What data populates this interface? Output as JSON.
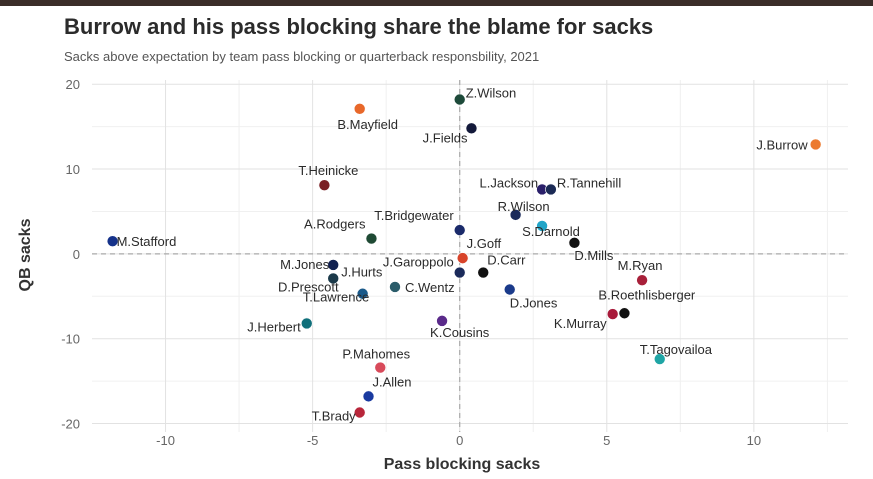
{
  "title": "Burrow and his pass blocking share the blame for sacks",
  "subtitle": "Sacks above expectation by team pass blocking or quarterback responsbility, 2021",
  "chart_data": {
    "type": "scatter",
    "xlabel": "Pass blocking sacks",
    "ylabel": "QB sacks",
    "xlim": [
      -12.5,
      13.2
    ],
    "ylim": [
      -21,
      20.5
    ],
    "xticks": [
      -10,
      -5,
      0,
      5,
      10
    ],
    "yticks": [
      20,
      10,
      0,
      -10,
      -20
    ],
    "grid": true,
    "reference_lines": {
      "x": 0,
      "y": 0,
      "style": "dashed"
    },
    "points": [
      {
        "label": "Z.Wilson",
        "x": 0.0,
        "y": 18.2,
        "color": "#1d4a3a"
      },
      {
        "label": "B.Mayfield",
        "x": -3.4,
        "y": 17.1,
        "color": "#e8682a"
      },
      {
        "label": "J.Fields",
        "x": 0.4,
        "y": 14.8,
        "color": "#13193a"
      },
      {
        "label": "J.Burrow",
        "x": 12.1,
        "y": 12.9,
        "color": "#ec7a2f"
      },
      {
        "label": "T.Heinicke",
        "x": -4.6,
        "y": 8.1,
        "color": "#7a1f24"
      },
      {
        "label": "L.Jackson",
        "x": 2.8,
        "y": 7.6,
        "color": "#2a1f6a"
      },
      {
        "label": "R.Tannehill",
        "x": 3.1,
        "y": 7.6,
        "color": "#1b2a55"
      },
      {
        "label": "R.Wilson",
        "x": 1.9,
        "y": 4.6,
        "color": "#1a2a5a"
      },
      {
        "label": "S.Darnold",
        "x": 2.8,
        "y": 3.3,
        "color": "#22a5c8"
      },
      {
        "label": "M.Stafford",
        "x": -11.8,
        "y": 1.5,
        "color": "#15328a"
      },
      {
        "label": "A.Rodgers",
        "x": -3.0,
        "y": 1.8,
        "color": "#1f4a34"
      },
      {
        "label": "T.Bridgewater",
        "x": 0.0,
        "y": 2.8,
        "color": "#1a2a6a"
      },
      {
        "label": "D.Mills",
        "x": 3.9,
        "y": 1.3,
        "color": "#111111"
      },
      {
        "label": "J.Goff",
        "x": 0.1,
        "y": -0.5,
        "color": "#d8442a"
      },
      {
        "label": "M.Jones",
        "x": -4.3,
        "y": -1.3,
        "color": "#102050"
      },
      {
        "label": "J.Garoppolo",
        "x": 0.0,
        "y": -2.2,
        "color": "#1a2a5a"
      },
      {
        "label": "D.Carr",
        "x": 0.8,
        "y": -2.2,
        "color": "#111111"
      },
      {
        "label": "J.Hurts",
        "x": -4.3,
        "y": -2.9,
        "color": "#1b3a4a"
      },
      {
        "label": "M.Ryan",
        "x": 6.2,
        "y": -3.1,
        "color": "#a8203a"
      },
      {
        "label": "C.Wentz",
        "x": -2.2,
        "y": -3.9,
        "color": "#2b5c6a"
      },
      {
        "label": "D.Jones",
        "x": 1.7,
        "y": -4.2,
        "color": "#1a3a8a"
      },
      {
        "label": "D.Prescott",
        "x": -3.3,
        "y": -4.7,
        "color": "#1a5a8a"
      },
      {
        "label": "B.Roethlisberger",
        "x": 5.6,
        "y": -7.0,
        "color": "#111111"
      },
      {
        "label": "K.Murray",
        "x": 5.2,
        "y": -7.1,
        "color": "#a81a3a"
      },
      {
        "label": "K.Cousins",
        "x": -0.6,
        "y": -7.9,
        "color": "#5a2a8a"
      },
      {
        "label": "J.Herbert",
        "x": -5.2,
        "y": -8.2,
        "color": "#2a8ad8"
      },
      {
        "label": "T.Lawrence",
        "x": -5.2,
        "y": -8.2,
        "color": "#0f6f7a"
      },
      {
        "label": "T.Tagovailoa",
        "x": 6.8,
        "y": -12.4,
        "color": "#1fa5a5"
      },
      {
        "label": "P.Mahomes",
        "x": -2.7,
        "y": -13.4,
        "color": "#d84a5a"
      },
      {
        "label": "J.Allen",
        "x": -3.1,
        "y": -16.8,
        "color": "#1a3aa0"
      },
      {
        "label": "T.Brady",
        "x": -3.4,
        "y": -18.7,
        "color": "#b8263a"
      }
    ]
  }
}
